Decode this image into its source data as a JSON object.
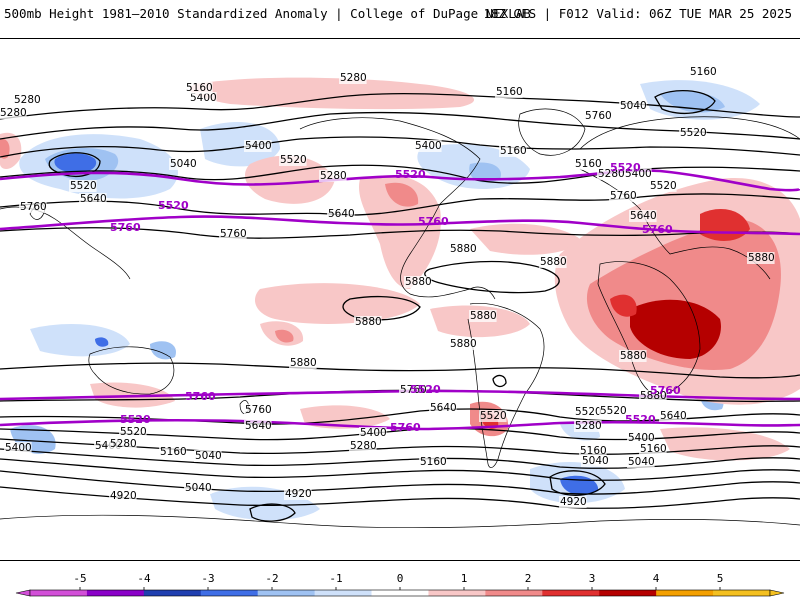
{
  "header": {
    "title": "500mb Height 1981–2010 Standardized Anomaly | College of DuPage NEXLAB",
    "model_info": "18Z GFS | F012 Valid: 06Z TUE MAR 25 2025"
  },
  "colorbar": {
    "ticks": [
      "-5",
      "-4",
      "-3",
      "-2",
      "-1",
      "0",
      "1",
      "2",
      "3",
      "4",
      "5"
    ],
    "colors": [
      "#d24fd8",
      "#8a00c8",
      "#1f3fb0",
      "#3f6ee6",
      "#9fc2f2",
      "#cfe1fa",
      "#ffffff",
      "#f8c7c7",
      "#f08a8a",
      "#e03030",
      "#b50000",
      "#f4a000",
      "#f4c020"
    ]
  },
  "map": {
    "contour_labels_black": [
      {
        "text": "5160"
      },
      {
        "text": "5280"
      },
      {
        "text": "5400"
      },
      {
        "text": "5160"
      },
      {
        "text": "5040"
      },
      {
        "text": "5280"
      },
      {
        "text": "5520"
      },
      {
        "text": "5400"
      },
      {
        "text": "5280"
      },
      {
        "text": "5520"
      },
      {
        "text": "5640"
      },
      {
        "text": "5760"
      },
      {
        "text": "5760"
      },
      {
        "text": "5640"
      },
      {
        "text": "5400"
      },
      {
        "text": "5160"
      },
      {
        "text": "5280"
      },
      {
        "text": "5760"
      },
      {
        "text": "5520"
      },
      {
        "text": "5160"
      },
      {
        "text": "5160"
      },
      {
        "text": "5040"
      },
      {
        "text": "5280"
      },
      {
        "text": "5400"
      },
      {
        "text": "5520"
      },
      {
        "text": "5640"
      },
      {
        "text": "5760"
      },
      {
        "text": "5880"
      },
      {
        "text": "5880"
      },
      {
        "text": "5880"
      },
      {
        "text": "5880"
      },
      {
        "text": "5880"
      },
      {
        "text": "5880"
      },
      {
        "text": "5880"
      },
      {
        "text": "5880"
      },
      {
        "text": "5880"
      },
      {
        "text": "5880"
      },
      {
        "text": "5520"
      },
      {
        "text": "5400"
      },
      {
        "text": "5280"
      },
      {
        "text": "5160"
      },
      {
        "text": "5040"
      },
      {
        "text": "5760"
      },
      {
        "text": "5640"
      },
      {
        "text": "5520"
      },
      {
        "text": "5400"
      },
      {
        "text": "5280"
      },
      {
        "text": "5160"
      },
      {
        "text": "5040"
      },
      {
        "text": "4920"
      },
      {
        "text": "4920"
      },
      {
        "text": "4920"
      },
      {
        "text": "5760"
      },
      {
        "text": "5640"
      },
      {
        "text": "5520"
      },
      {
        "text": "5280"
      },
      {
        "text": "5400"
      },
      {
        "text": "5160"
      },
      {
        "text": "5040"
      },
      {
        "text": "5640"
      },
      {
        "text": "5520"
      },
      {
        "text": "5040"
      },
      {
        "text": "5160"
      },
      {
        "text": "5400"
      }
    ],
    "contour_labels_purple": [
      {
        "text": "5520"
      },
      {
        "text": "5760"
      },
      {
        "text": "5520"
      },
      {
        "text": "5760"
      },
      {
        "text": "5520"
      },
      {
        "text": "5760"
      },
      {
        "text": "5760"
      },
      {
        "text": "5520"
      },
      {
        "text": "5760"
      },
      {
        "text": "5520"
      },
      {
        "text": "5760"
      },
      {
        "text": "5520"
      }
    ]
  }
}
